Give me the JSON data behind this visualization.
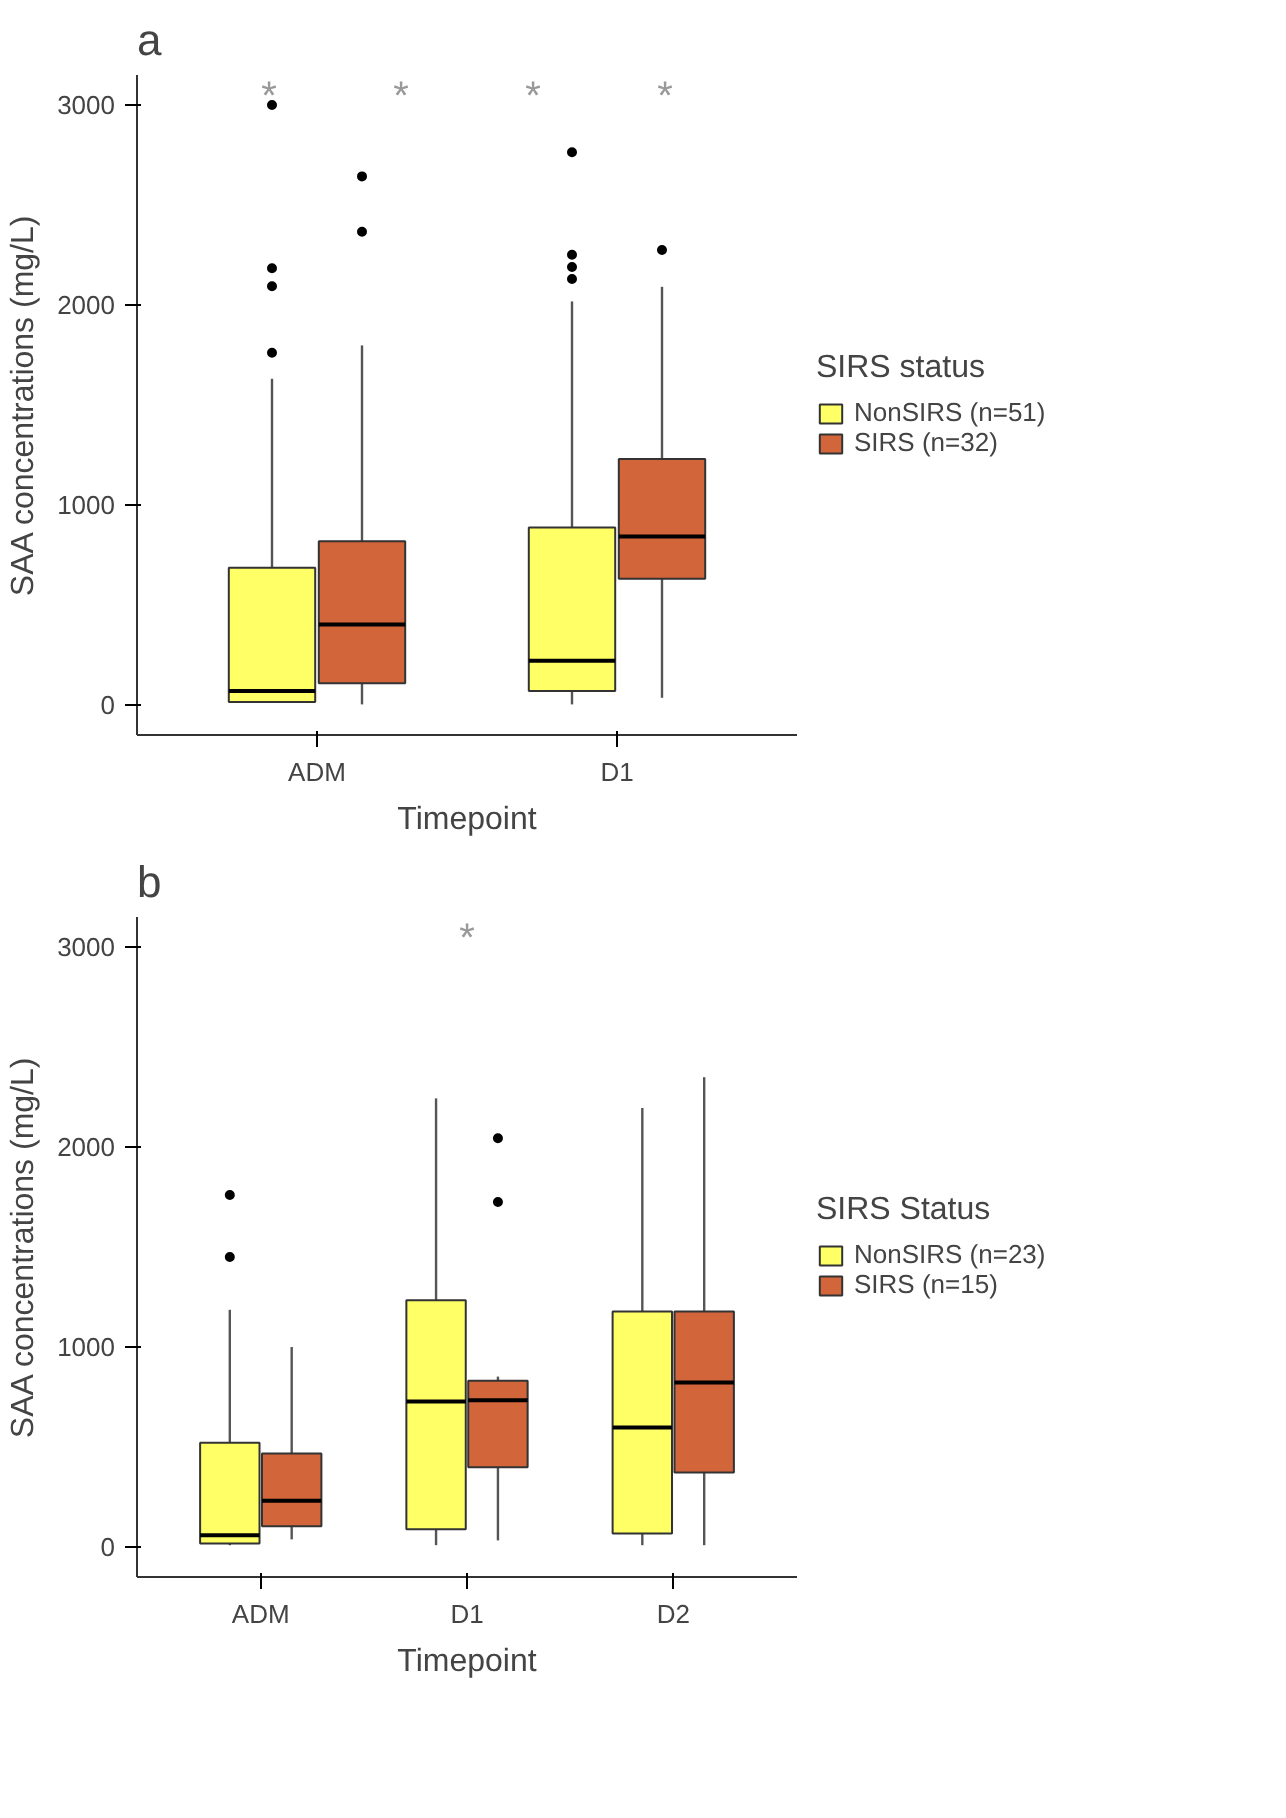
{
  "chart_data": [
    {
      "type": "box",
      "title": "a",
      "xlabel": "Timepoint",
      "ylabel": "SAA concentrations (mg/L)",
      "legend_title": "SIRS status",
      "legend": "right",
      "grid": false,
      "categories": [
        "ADM",
        "D1"
      ],
      "ylim": [
        -150,
        3150
      ],
      "yticks": [
        0,
        1000,
        2000,
        3000
      ],
      "series": [
        {
          "name": "NonSIRS (n=51)",
          "color": "#ffff66",
          "boxes": [
            {
              "low": 10,
              "q1": 15,
              "median": 70,
              "q3": 686,
              "high": 1631,
              "outliers": [
                1761,
                2094,
                2184,
                3000
              ]
            },
            {
              "low": 3,
              "q1": 70,
              "median": 221,
              "q3": 888,
              "high": 2018,
              "outliers": [
                2130,
                2190,
                2251,
                2764
              ]
            }
          ]
        },
        {
          "name": "SIRS (n=32)",
          "color": "#d2653a",
          "boxes": [
            {
              "low": 3,
              "q1": 109,
              "median": 402,
              "q3": 819,
              "high": 1798,
              "outliers": [
                2366,
                2643
              ]
            },
            {
              "low": 36,
              "q1": 631,
              "median": 843,
              "q3": 1230,
              "high": 2091,
              "outliers": [
                2275
              ]
            }
          ]
        }
      ],
      "annotations": [
        "*",
        "*",
        "*",
        "*"
      ]
    },
    {
      "type": "box",
      "title": "b",
      "xlabel": "Timepoint",
      "ylabel": "SAA concentrations (mg/L)",
      "legend_title": "SIRS Status",
      "legend": "right",
      "grid": false,
      "categories": [
        "ADM",
        "D1",
        "D2"
      ],
      "ylim": [
        -150,
        3150
      ],
      "yticks": [
        0,
        1000,
        2000,
        3000
      ],
      "series": [
        {
          "name": "NonSIRS (n=23)",
          "color": "#ffff66",
          "boxes": [
            {
              "low": 9,
              "q1": 18,
              "median": 59,
              "q3": 521,
              "high": 1186,
              "outliers": [
                1450,
                1760
              ]
            },
            {
              "low": 9,
              "q1": 89,
              "median": 728,
              "q3": 1234,
              "high": 2243
            },
            {
              "low": 9,
              "q1": 68,
              "median": 598,
              "q3": 1178,
              "high": 2195
            }
          ]
        },
        {
          "name": "SIRS (n=15)",
          "color": "#d2653a",
          "boxes": [
            {
              "low": 38,
              "q1": 104,
              "median": 231,
              "q3": 467,
              "high": 1000
            },
            {
              "low": 33,
              "q1": 399,
              "median": 734,
              "q3": 831,
              "high": 852,
              "outliers": [
                1725,
                2044
              ]
            },
            {
              "low": 9,
              "q1": 373,
              "median": 822,
              "q3": 1178,
              "high": 2349
            }
          ]
        }
      ],
      "annotations": [
        "*"
      ]
    }
  ]
}
